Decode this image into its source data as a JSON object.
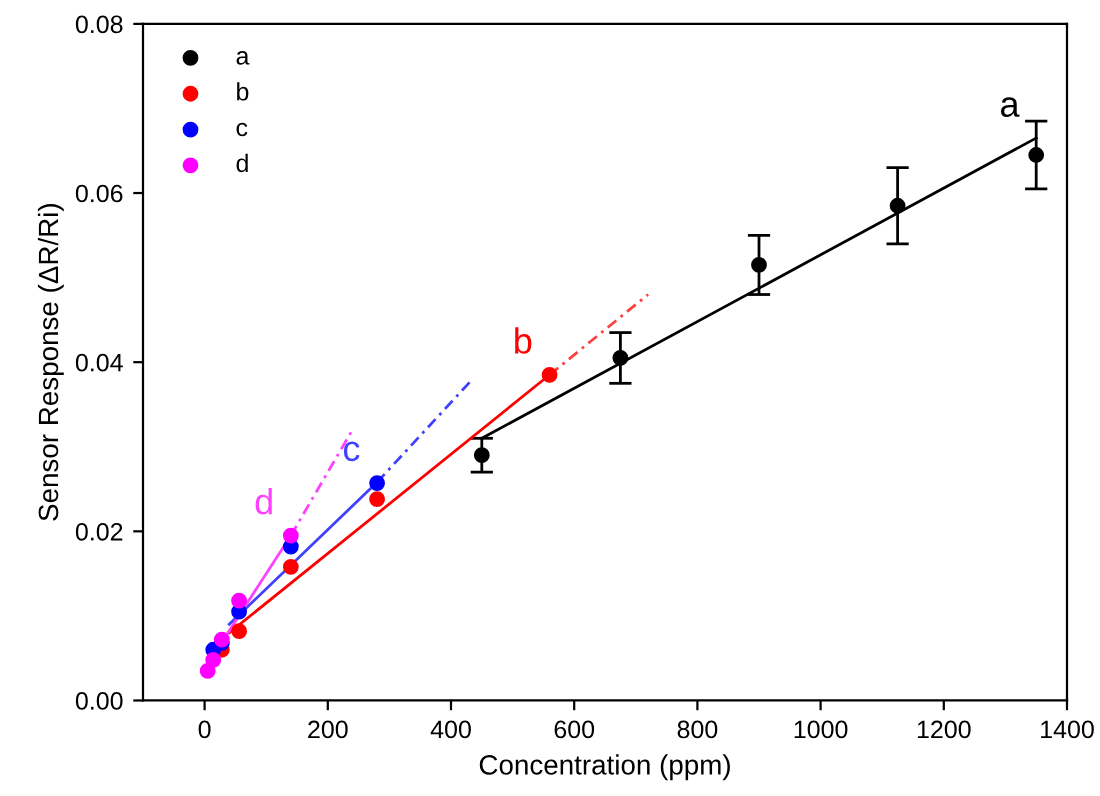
{
  "chart_data": {
    "type": "scatter",
    "xlabel": "Concentration (ppm)",
    "ylabel": "Sensor Response (ΔR/Ri)",
    "xlim": [
      -100,
      1400
    ],
    "ylim": [
      0,
      0.08
    ],
    "xticks": [
      0,
      200,
      400,
      600,
      800,
      1000,
      1200,
      1400
    ],
    "yticks": [
      {
        "value": 0,
        "label": "0.00"
      },
      {
        "value": 0.02,
        "label": "0.02"
      },
      {
        "value": 0.04,
        "label": "0.04"
      },
      {
        "value": 0.06,
        "label": "0.06"
      },
      {
        "value": 0.08,
        "label": "0.08"
      }
    ],
    "grid": false,
    "legend": "top left",
    "series": [
      {
        "name": "a",
        "color": "#000000",
        "marker": "circle",
        "x": [
          450,
          675,
          900,
          1125,
          1350
        ],
        "values": [
          0.029,
          0.0405,
          0.0515,
          0.0585,
          0.0645
        ],
        "errors": [
          0.002,
          0.003,
          0.0035,
          0.0045,
          0.004
        ]
      },
      {
        "name": "b",
        "color": "#ff0000",
        "marker": "circle",
        "x": [
          28,
          56,
          140,
          280,
          560
        ],
        "values": [
          0.006,
          0.0082,
          0.0158,
          0.0238,
          0.0385
        ]
      },
      {
        "name": "c",
        "color": "#0000ff",
        "marker": "circle",
        "x": [
          14,
          28,
          56,
          140,
          280
        ],
        "values": [
          0.006,
          0.0068,
          0.0105,
          0.0182,
          0.0257
        ]
      },
      {
        "name": "d",
        "color": "#ff00ff",
        "marker": "circle",
        "x": [
          5,
          14,
          28,
          56,
          140
        ],
        "values": [
          0.0035,
          0.0048,
          0.0072,
          0.0118,
          0.0195
        ]
      },
      {
        "type": "line",
        "name": "a",
        "color": "#000000",
        "marker": "none",
        "line_style": "solid",
        "x": [
          450,
          1350
        ],
        "values": [
          0.031,
          0.0665
        ]
      },
      {
        "type": "line",
        "name": "b",
        "color": "#ff0000",
        "marker": "none",
        "line_style": "solid",
        "x": [
          40,
          560
        ],
        "values": [
          0.008,
          0.0385
        ]
      },
      {
        "type": "line",
        "color": "#ff4040",
        "marker": "none",
        "line_style": "dashed",
        "x": [
          560,
          720
        ],
        "values": [
          0.0385,
          0.048
        ]
      },
      {
        "type": "line",
        "name": "c",
        "color": "#4040ff",
        "marker": "none",
        "line_style": "solid",
        "x": [
          40,
          280
        ],
        "values": [
          0.009,
          0.0258
        ]
      },
      {
        "type": "line",
        "color": "#4040ff",
        "marker": "none",
        "line_style": "dashed",
        "x": [
          280,
          435
        ],
        "values": [
          0.0258,
          0.038
        ]
      },
      {
        "type": "line",
        "name": "d",
        "color": "#ff40ff",
        "marker": "none",
        "line_style": "solid",
        "x": [
          20,
          140
        ],
        "values": [
          0.006,
          0.0195
        ]
      },
      {
        "type": "line",
        "color": "#ff40ff",
        "marker": "none",
        "line_style": "dashed",
        "x": [
          140,
          240
        ],
        "values": [
          0.0195,
          0.032
        ]
      }
    ]
  }
}
